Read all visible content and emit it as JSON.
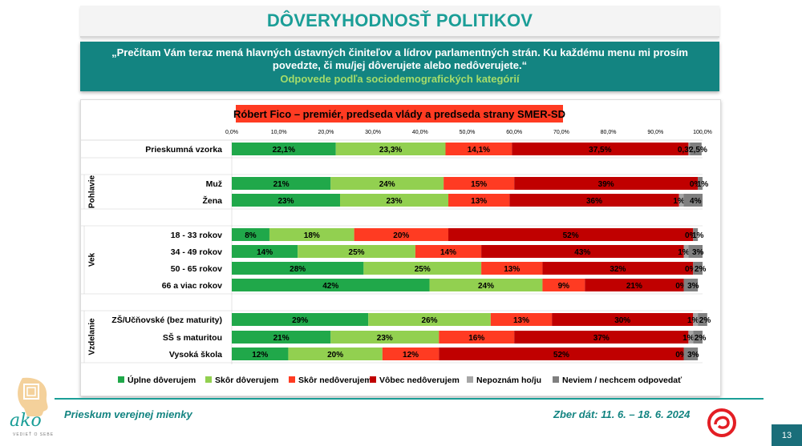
{
  "page": {
    "title": "DÔVERYHODNOSŤ POLITIKOV",
    "question": "„Prečítam Vám teraz mená hlavných ústavných činiteľov a lídrov parlamentných strán. Ku každému menu mi prosím povedzte, či mu/jej dôverujete alebo nedôverujete.“",
    "subtitle": "Odpovede podľa sociodemografických kategórií",
    "footer_left": "Prieskum verejnej mienky",
    "footer_right": "Zber dát: 11. 6. – 18. 6. 2024",
    "page_number": "13",
    "logo_text": "ako",
    "logo_tagline": "VEDIEŤ O SEBE"
  },
  "colors": {
    "teal": "#138481",
    "title_teal": "#1b9e97",
    "s1": "#20a84a",
    "s2": "#92d050",
    "s3": "#ff3b22",
    "s4": "#c00000",
    "s5": "#a6a6a6",
    "s6": "#7f7f7f",
    "chart_title_bg": "#ff3b22"
  },
  "chart_data": {
    "type": "bar",
    "orientation": "horizontal",
    "stacked": true,
    "title": "Róbert Fico – premiér, predseda vlády a predseda strany SMER-SD",
    "xlim": [
      0,
      100
    ],
    "x_ticks": [
      "0,0%",
      "10,0%",
      "20,0%",
      "30,0%",
      "40,0%",
      "50,0%",
      "60,0%",
      "70,0%",
      "80,0%",
      "90,0%",
      "100,0%"
    ],
    "legend_position": "bottom",
    "series_names": [
      "Úplne dôverujem",
      "Skôr dôverujem",
      "Skôr nedôverujem",
      "Vôbec nedôverujem",
      "Nepoznám ho/ju",
      "Neviem / nechcem odpovedať"
    ],
    "groups": [
      {
        "label": "",
        "rows": [
          {
            "label": "Prieskumná vzorka",
            "values": [
              22.1,
              23.3,
              14.1,
              37.5,
              0.3,
              2.5
            ],
            "labels": [
              "22,1%",
              "23,3%",
              "14,1%",
              "37,5%",
              "0,3%",
              "2,5%"
            ]
          }
        ]
      },
      {
        "label": "Pohlavie",
        "rows": [
          {
            "label": "Muž",
            "values": [
              21,
              24,
              15,
              39,
              0,
              1
            ],
            "labels": [
              "21%",
              "24%",
              "15%",
              "39%",
              "0%",
              "1%"
            ]
          },
          {
            "label": "Žena",
            "values": [
              23,
              23,
              13,
              36,
              1,
              4
            ],
            "labels": [
              "23%",
              "23%",
              "13%",
              "36%",
              "1%",
              "4%"
            ]
          }
        ]
      },
      {
        "label": "Vek",
        "rows": [
          {
            "label": "18 - 33 rokov",
            "values": [
              8,
              18,
              20,
              52,
              0,
              1
            ],
            "labels": [
              "8%",
              "18%",
              "20%",
              "52%",
              "0%",
              "1%"
            ]
          },
          {
            "label": "34 - 49 rokov",
            "values": [
              14,
              25,
              14,
              43,
              1,
              3
            ],
            "labels": [
              "14%",
              "25%",
              "14%",
              "43%",
              "1%",
              "3%"
            ]
          },
          {
            "label": "50 - 65 rokov",
            "values": [
              28,
              25,
              13,
              32,
              0,
              2
            ],
            "labels": [
              "28%",
              "25%",
              "13%",
              "32%",
              "0%",
              "2%"
            ]
          },
          {
            "label": "66 a viac rokov",
            "values": [
              42,
              24,
              9,
              21,
              0,
              3
            ],
            "labels": [
              "42%",
              "24%",
              "9%",
              "21%",
              "0%",
              "3%"
            ]
          }
        ]
      },
      {
        "label": "Vzdelanie",
        "rows": [
          {
            "label": "ZŠ/Učňovské (bez maturity)",
            "values": [
              29,
              26,
              13,
              30,
              1,
              2
            ],
            "labels": [
              "29%",
              "26%",
              "13%",
              "30%",
              "1%",
              "2%"
            ]
          },
          {
            "label": "SŠ s maturitou",
            "values": [
              21,
              23,
              16,
              37,
              1,
              2
            ],
            "labels": [
              "21%",
              "23%",
              "16%",
              "37%",
              "1%",
              "2%"
            ]
          },
          {
            "label": "Vysoká škola",
            "values": [
              12,
              20,
              12,
              52,
              0,
              3
            ],
            "labels": [
              "12%",
              "20%",
              "12%",
              "52%",
              "0%",
              "3%"
            ]
          }
        ]
      }
    ]
  }
}
